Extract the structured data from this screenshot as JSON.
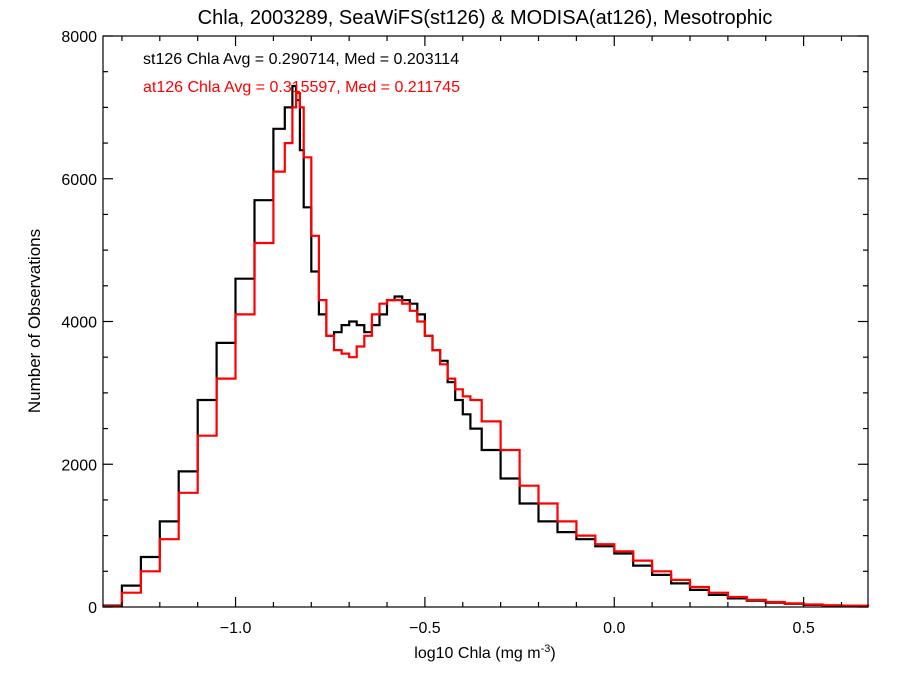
{
  "chart_data": {
    "type": "line",
    "title": "Chla, 2003289, SeaWiFS(st126) & MODISA(at126), Mesotrophic",
    "xlabel_main": "log10 Chla (mg m",
    "xlabel_exp": "-3",
    "xlabel_close": ")",
    "ylabel": "Number of Observations",
    "xlim": [
      -1.35,
      0.67
    ],
    "ylim": [
      0,
      8000
    ],
    "x_ticks": [
      -1.0,
      -0.5,
      0.0,
      0.5
    ],
    "x_tick_labels": [
      "−1.0",
      "−0.5",
      "0.0",
      "0.5"
    ],
    "y_ticks": [
      0,
      2000,
      4000,
      6000,
      8000
    ],
    "y_tick_labels": [
      "0",
      "2000",
      "4000",
      "6000",
      "8000"
    ],
    "step_style": "histogram-steps",
    "annotations": [
      {
        "text": "st126 Chla Avg = 0.290714, Med = 0.203114",
        "color": "#000000"
      },
      {
        "text": "at126 Chla Avg = 0.315597, Med = 0.211745",
        "color": "#ff0000"
      }
    ],
    "series": [
      {
        "color": "#000000",
        "x": [
          -1.35,
          -1.3,
          -1.25,
          -1.2,
          -1.15,
          -1.1,
          -1.05,
          -1.0,
          -0.95,
          -0.9,
          -0.87,
          -0.85,
          -0.84,
          -0.83,
          -0.82,
          -0.8,
          -0.78,
          -0.76,
          -0.74,
          -0.72,
          -0.7,
          -0.68,
          -0.66,
          -0.64,
          -0.62,
          -0.6,
          -0.58,
          -0.56,
          -0.54,
          -0.52,
          -0.5,
          -0.48,
          -0.46,
          -0.44,
          -0.42,
          -0.4,
          -0.38,
          -0.35,
          -0.3,
          -0.25,
          -0.2,
          -0.15,
          -0.1,
          -0.05,
          0.0,
          0.05,
          0.1,
          0.15,
          0.2,
          0.25,
          0.3,
          0.35,
          0.4,
          0.45,
          0.5,
          0.55,
          0.6,
          0.67
        ],
        "y": [
          20,
          300,
          700,
          1200,
          1900,
          2900,
          3700,
          4600,
          5700,
          6700,
          7000,
          7300,
          7100,
          6400,
          5600,
          4700,
          4100,
          3800,
          3850,
          3950,
          4000,
          3950,
          3850,
          3950,
          4100,
          4300,
          4350,
          4300,
          4250,
          4100,
          3800,
          3600,
          3450,
          3150,
          2900,
          2700,
          2500,
          2200,
          1800,
          1450,
          1200,
          1050,
          950,
          850,
          750,
          580,
          450,
          330,
          240,
          170,
          120,
          90,
          60,
          45,
          30,
          20,
          15,
          8
        ]
      },
      {
        "color": "#ff0000",
        "x": [
          -1.35,
          -1.3,
          -1.25,
          -1.2,
          -1.15,
          -1.1,
          -1.05,
          -1.0,
          -0.95,
          -0.9,
          -0.87,
          -0.85,
          -0.84,
          -0.83,
          -0.82,
          -0.8,
          -0.78,
          -0.76,
          -0.74,
          -0.72,
          -0.7,
          -0.68,
          -0.66,
          -0.64,
          -0.62,
          -0.6,
          -0.58,
          -0.56,
          -0.54,
          -0.52,
          -0.5,
          -0.48,
          -0.46,
          -0.44,
          -0.42,
          -0.4,
          -0.38,
          -0.35,
          -0.3,
          -0.25,
          -0.2,
          -0.15,
          -0.1,
          -0.05,
          0.0,
          0.05,
          0.1,
          0.15,
          0.2,
          0.25,
          0.3,
          0.35,
          0.4,
          0.45,
          0.5,
          0.55,
          0.6,
          0.67
        ],
        "y": [
          10,
          200,
          500,
          950,
          1600,
          2400,
          3200,
          4100,
          5100,
          6100,
          6500,
          7000,
          7200,
          7000,
          6300,
          5200,
          4300,
          3800,
          3600,
          3550,
          3500,
          3650,
          3800,
          4100,
          4250,
          4300,
          4300,
          4250,
          4150,
          4000,
          3800,
          3600,
          3400,
          3200,
          3050,
          2950,
          2900,
          2600,
          2200,
          1700,
          1450,
          1200,
          1000,
          880,
          780,
          650,
          500,
          380,
          280,
          200,
          140,
          100,
          70,
          50,
          35,
          25,
          18,
          10
        ]
      }
    ]
  }
}
